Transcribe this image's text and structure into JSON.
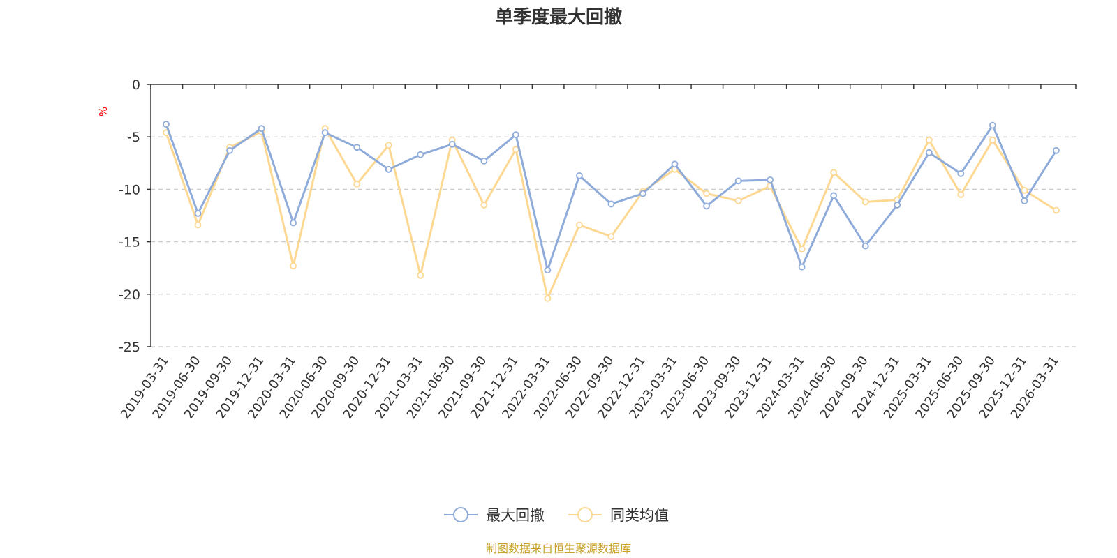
{
  "chart_data": {
    "type": "line",
    "title": "单季度最大回撤",
    "ylabel": "%",
    "xlabel": "",
    "ylim": [
      -25,
      0
    ],
    "yticks": [
      0,
      -5,
      -10,
      -15,
      -20,
      -25
    ],
    "grid": true,
    "legend_position": "bottom-center",
    "categories": [
      "2019-03-31",
      "2019-06-30",
      "2019-09-30",
      "2019-12-31",
      "2020-03-31",
      "2020-06-30",
      "2020-09-30",
      "2020-12-31",
      "2021-03-31",
      "2021-06-30",
      "2021-09-30",
      "2021-12-31",
      "2022-03-31",
      "2022-06-30",
      "2022-09-30",
      "2022-12-31",
      "2023-03-31",
      "2023-06-30",
      "2023-09-30",
      "2023-12-31",
      "2024-03-31",
      "2024-06-30",
      "2024-09-30",
      "2024-12-31",
      "2025-03-31",
      "2025-06-30",
      "2025-09-30",
      "2025-12-31",
      "2026-03-31"
    ],
    "series": [
      {
        "name": "最大回撤",
        "color": "#8eabd9",
        "values": [
          -3.8,
          -12.3,
          -6.3,
          -4.2,
          -13.2,
          -4.6,
          -6.0,
          -8.1,
          -6.7,
          -5.7,
          -7.3,
          -4.8,
          -17.7,
          -8.7,
          -11.4,
          -10.4,
          -7.6,
          -11.6,
          -9.2,
          -9.1,
          -17.4,
          -10.6,
          -15.4,
          -11.5,
          -6.5,
          -8.5,
          -3.9,
          -11.1,
          -6.3
        ]
      },
      {
        "name": "同类均值",
        "color": "#fcd893",
        "values": [
          -4.6,
          -13.4,
          -6.0,
          -4.5,
          -17.3,
          -4.2,
          -9.5,
          -5.8,
          -18.2,
          -5.3,
          -11.5,
          -6.2,
          -20.4,
          -13.4,
          -14.5,
          -10.2,
          -8.1,
          -10.4,
          -11.1,
          -9.7,
          -15.7,
          -8.4,
          -11.2,
          -11.0,
          -5.3,
          -10.5,
          -5.3,
          -10.1,
          -12.0
        ]
      }
    ]
  },
  "source": {
    "text": "制图数据来自恒生聚源数据库",
    "color": "#c9a227"
  },
  "colors": {
    "axis": "#333333",
    "grid": "#cccccc",
    "unit": "#ff0000"
  }
}
